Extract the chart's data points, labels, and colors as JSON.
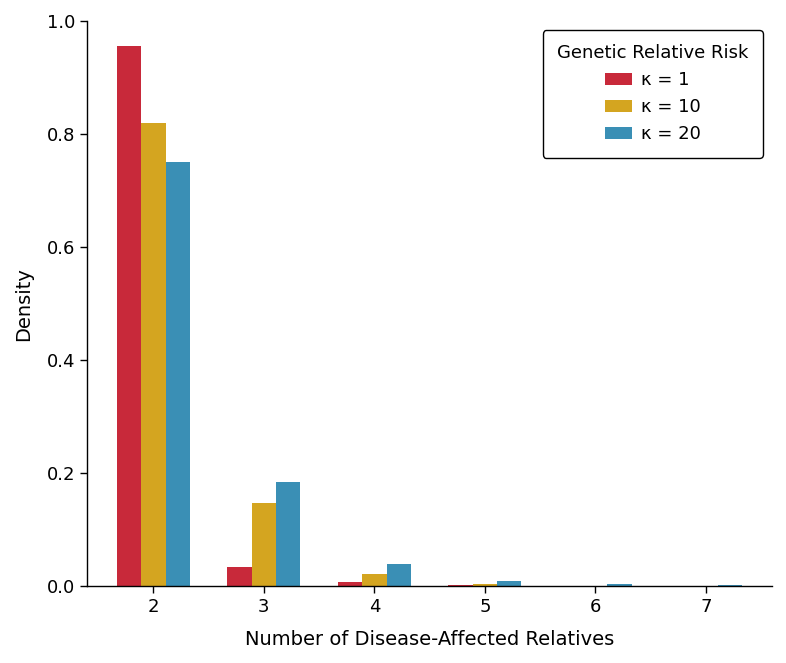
{
  "categories": [
    2,
    3,
    4,
    5,
    6,
    7
  ],
  "series": {
    "kappa_1": {
      "label": "κ = 1",
      "color": "#C8293A",
      "values": [
        0.955,
        0.035,
        0.007,
        0.002,
        0.0005,
        0.0002
      ]
    },
    "kappa_10": {
      "label": "κ = 10",
      "color": "#D4A520",
      "values": [
        0.82,
        0.148,
        0.022,
        0.005,
        0.001,
        0.0005
      ]
    },
    "kappa_20": {
      "label": "κ = 20",
      "color": "#3A8FB5",
      "values": [
        0.75,
        0.185,
        0.04,
        0.01,
        0.004,
        0.002
      ]
    }
  },
  "xlabel": "Number of Disease-Affected Relatives",
  "ylabel": "Density",
  "ylim": [
    0,
    1.0
  ],
  "yticks": [
    0.0,
    0.2,
    0.4,
    0.6,
    0.8,
    1.0
  ],
  "legend_title": "Genetic Relative Risk",
  "bar_width": 0.22,
  "axis_fontsize": 14,
  "tick_fontsize": 13,
  "legend_fontsize": 13,
  "background_color": "#ffffff",
  "fig_width": 7.86,
  "fig_height": 6.63,
  "xlim_left": 1.4,
  "xlim_right": 7.6
}
